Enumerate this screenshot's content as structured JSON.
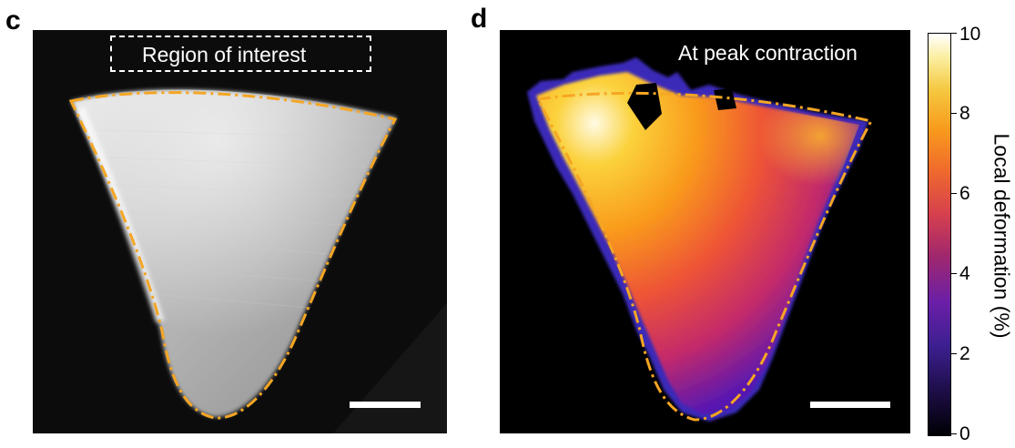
{
  "panels": {
    "c": {
      "letter": "c",
      "roi_label": "Region of interest"
    },
    "d": {
      "letter": "d",
      "overlay_label": "At peak contraction"
    }
  },
  "colorbar": {
    "title": "Local deformation (%)",
    "ticks": [
      "10",
      "8",
      "6",
      "4",
      "2",
      "0"
    ],
    "min": 0,
    "max": 10,
    "colormap": "plasma/inferno-like (black → purple → red → orange → yellow → white)"
  },
  "colors": {
    "outline": "#f5a623",
    "scalebar": "#ffffff",
    "background": "#000000"
  }
}
